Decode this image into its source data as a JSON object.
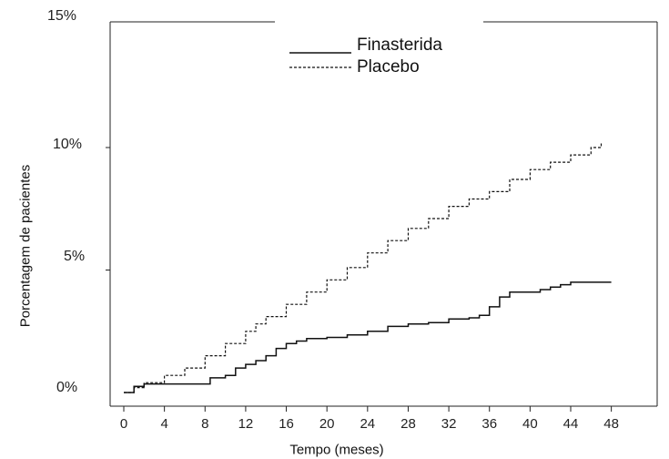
{
  "chart_data": {
    "type": "line",
    "xlabel": "Tempo (meses)",
    "ylabel": "Porcentagem de pacientes",
    "xlim": [
      0,
      48
    ],
    "ylim": [
      0,
      15
    ],
    "x_ticks": [
      0,
      4,
      8,
      12,
      16,
      20,
      24,
      28,
      32,
      36,
      40,
      44,
      48
    ],
    "x_tick_labels": [
      "0",
      "4",
      "8",
      "12",
      "16",
      "20",
      "24",
      "28",
      "32",
      "36",
      "40",
      "44",
      "48"
    ],
    "y_ticks": [
      0,
      5,
      10,
      15
    ],
    "y_tick_labels": [
      "0%",
      "5%",
      "10%",
      "15%"
    ],
    "grid": false,
    "legend_position": "top-center",
    "series": [
      {
        "name": "Finasterida",
        "line_style": "solid",
        "points": [
          [
            0,
            0
          ],
          [
            1,
            0.25
          ],
          [
            2,
            0.35
          ],
          [
            4,
            0.35
          ],
          [
            6,
            0.35
          ],
          [
            8,
            0.35
          ],
          [
            8.5,
            0.6
          ],
          [
            10,
            0.7
          ],
          [
            11,
            1.0
          ],
          [
            12,
            1.15
          ],
          [
            13,
            1.3
          ],
          [
            14,
            1.5
          ],
          [
            15,
            1.8
          ],
          [
            16,
            2.0
          ],
          [
            17,
            2.1
          ],
          [
            18,
            2.2
          ],
          [
            20,
            2.25
          ],
          [
            22,
            2.35
          ],
          [
            24,
            2.5
          ],
          [
            26,
            2.7
          ],
          [
            28,
            2.8
          ],
          [
            30,
            2.85
          ],
          [
            32,
            3.0
          ],
          [
            34,
            3.05
          ],
          [
            35,
            3.15
          ],
          [
            36,
            3.5
          ],
          [
            37,
            3.9
          ],
          [
            38,
            4.1
          ],
          [
            40,
            4.1
          ],
          [
            41,
            4.2
          ],
          [
            42,
            4.3
          ],
          [
            43,
            4.4
          ],
          [
            44,
            4.5
          ],
          [
            46,
            4.5
          ],
          [
            48,
            4.5
          ]
        ]
      },
      {
        "name": "Placebo",
        "line_style": "dashed",
        "points": [
          [
            0,
            0
          ],
          [
            1,
            0.2
          ],
          [
            2,
            0.4
          ],
          [
            4,
            0.7
          ],
          [
            6,
            1.0
          ],
          [
            8,
            1.5
          ],
          [
            10,
            2.0
          ],
          [
            12,
            2.5
          ],
          [
            13,
            2.8
          ],
          [
            14,
            3.1
          ],
          [
            16,
            3.6
          ],
          [
            18,
            4.1
          ],
          [
            20,
            4.6
          ],
          [
            22,
            5.1
          ],
          [
            24,
            5.7
          ],
          [
            26,
            6.2
          ],
          [
            28,
            6.7
          ],
          [
            30,
            7.1
          ],
          [
            32,
            7.6
          ],
          [
            34,
            7.9
          ],
          [
            36,
            8.2
          ],
          [
            38,
            8.7
          ],
          [
            40,
            9.1
          ],
          [
            42,
            9.4
          ],
          [
            44,
            9.7
          ],
          [
            46,
            10.0
          ],
          [
            47,
            10.2
          ]
        ]
      }
    ]
  }
}
